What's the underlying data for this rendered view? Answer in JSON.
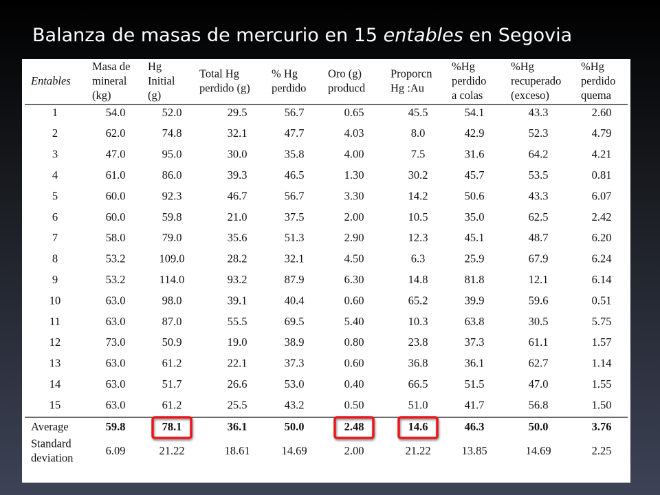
{
  "slide": {
    "title_parts": [
      "Balanza de masas de mercurio en 15 ",
      "entables",
      " en Segovia"
    ],
    "table": {
      "header": [
        [
          "Entables"
        ],
        [
          "Masa de",
          "mineral",
          "(kg)"
        ],
        [
          "Hg",
          "Initial",
          "(g)"
        ],
        [
          "Total Hg",
          "perdido (g)"
        ],
        [
          "% Hg",
          "perdido"
        ],
        [
          "Oro (g)",
          "producd"
        ],
        [
          "Proporcn",
          "Hg :Au"
        ],
        [
          "%Hg",
          "perdido",
          "a colas"
        ],
        [
          "%Hg",
          "recuperado",
          "(exceso)"
        ],
        [
          "%Hg",
          "perdido",
          "quema"
        ]
      ],
      "rows": [
        [
          "1",
          "54.0",
          "52.0",
          "29.5",
          "56.7",
          "0.65",
          "45.5",
          "54.1",
          "43.3",
          "2.60"
        ],
        [
          "2",
          "62.0",
          "74.8",
          "32.1",
          "47.7",
          "4.03",
          "8.0",
          "42.9",
          "52.3",
          "4.79"
        ],
        [
          "3",
          "47.0",
          "95.0",
          "30.0",
          "35.8",
          "4.00",
          "7.5",
          "31.6",
          "64.2",
          "4.21"
        ],
        [
          "4",
          "61.0",
          "86.0",
          "39.3",
          "46.5",
          "1.30",
          "30.2",
          "45.7",
          "53.5",
          "0.81"
        ],
        [
          "5",
          "60.0",
          "92.3",
          "46.7",
          "56.7",
          "3.30",
          "14.2",
          "50.6",
          "43.3",
          "6.07"
        ],
        [
          "6",
          "60.0",
          "59.8",
          "21.0",
          "37.5",
          "2.00",
          "10.5",
          "35.0",
          "62.5",
          "2.42"
        ],
        [
          "7",
          "58.0",
          "79.0",
          "35.6",
          "51.3",
          "2.90",
          "12.3",
          "45.1",
          "48.7",
          "6.20"
        ],
        [
          "8",
          "53.2",
          "109.0",
          "28.2",
          "32.1",
          "4.50",
          "6.3",
          "25.9",
          "67.9",
          "6.24"
        ],
        [
          "9",
          "53.2",
          "114.0",
          "93.2",
          "87.9",
          "6.30",
          "14.8",
          "81.8",
          "12.1",
          "6.14"
        ],
        [
          "10",
          "63.0",
          "98.0",
          "39.1",
          "40.4",
          "0.60",
          "65.2",
          "39.9",
          "59.6",
          "0.51"
        ],
        [
          "11",
          "63.0",
          "87.0",
          "55.5",
          "69.5",
          "5.40",
          "10.3",
          "63.8",
          "30.5",
          "5.75"
        ],
        [
          "12",
          "73.0",
          "50.9",
          "19.0",
          "38.9",
          "0.80",
          "23.8",
          "37.3",
          "61.1",
          "1.57"
        ],
        [
          "13",
          "63.0",
          "61.2",
          "22.1",
          "37.3",
          "0.60",
          "36.8",
          "36.1",
          "62.7",
          "1.14"
        ],
        [
          "14",
          "63.0",
          "51.7",
          "26.6",
          "53.0",
          "0.40",
          "66.5",
          "51.5",
          "47.0",
          "1.55"
        ],
        [
          "15",
          "63.0",
          "61.2",
          "25.5",
          "43.2",
          "0.50",
          "51.0",
          "41.7",
          "56.8",
          "1.50"
        ]
      ],
      "average": {
        "label": [
          "Average"
        ],
        "values": [
          "59.8",
          "78.1",
          "36.1",
          "50.0",
          "2.48",
          "14.6",
          "46.3",
          "50.0",
          "3.76"
        ],
        "highlight_columns": [
          2,
          5,
          6
        ]
      },
      "std_dev": {
        "label": [
          "Standard",
          "deviation"
        ],
        "values": [
          "6.09",
          "21.22",
          "18.61",
          "14.69",
          "2.00",
          "21.22",
          "13.85",
          "14.69",
          "2.25"
        ]
      }
    }
  }
}
